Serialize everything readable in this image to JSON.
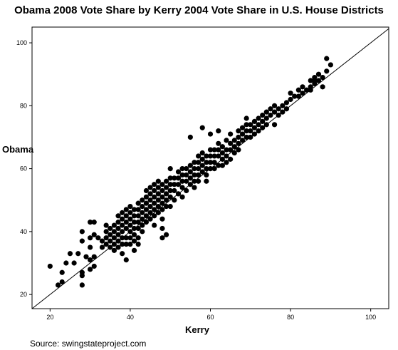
{
  "chart_data": {
    "type": "scatter",
    "title": "Obama 2008 Vote Share by Kerry 2004 Vote Share in U.S. House Districts",
    "xlabel": "Kerry",
    "ylabel": "Obama",
    "xlim": [
      15.5,
      104.5
    ],
    "ylim": [
      15.5,
      105
    ],
    "xticks": [
      "20",
      "40",
      "60",
      "80",
      "100"
    ],
    "yticks": [
      "20",
      "40",
      "60",
      "80",
      "100"
    ],
    "reference_line": "y = x",
    "grid": false,
    "legend": "none",
    "point_color": "#000000",
    "points": [
      [
        20,
        29
      ],
      [
        22,
        23
      ],
      [
        23,
        24
      ],
      [
        23,
        27
      ],
      [
        24,
        30
      ],
      [
        25,
        33
      ],
      [
        26,
        30
      ],
      [
        27,
        33
      ],
      [
        28,
        40
      ],
      [
        28,
        37
      ],
      [
        28,
        27
      ],
      [
        28,
        26
      ],
      [
        28,
        23
      ],
      [
        29,
        32
      ],
      [
        30,
        43
      ],
      [
        30,
        38
      ],
      [
        30,
        35
      ],
      [
        30,
        31
      ],
      [
        30,
        28
      ],
      [
        31,
        43
      ],
      [
        31,
        39
      ],
      [
        31,
        32
      ],
      [
        31,
        29
      ],
      [
        32,
        38
      ],
      [
        33,
        37
      ],
      [
        33,
        35
      ],
      [
        34,
        42
      ],
      [
        34,
        40
      ],
      [
        34,
        38
      ],
      [
        34,
        36
      ],
      [
        35,
        41
      ],
      [
        35,
        39
      ],
      [
        35,
        37
      ],
      [
        35,
        35
      ],
      [
        36,
        42
      ],
      [
        36,
        40
      ],
      [
        36,
        38
      ],
      [
        36,
        36
      ],
      [
        36,
        34
      ],
      [
        37,
        45
      ],
      [
        37,
        43
      ],
      [
        37,
        41
      ],
      [
        37,
        39
      ],
      [
        37,
        37
      ],
      [
        37,
        35
      ],
      [
        38,
        46
      ],
      [
        38,
        44
      ],
      [
        38,
        42
      ],
      [
        38,
        40
      ],
      [
        38,
        38
      ],
      [
        38,
        36
      ],
      [
        38,
        33
      ],
      [
        39,
        47
      ],
      [
        39,
        45
      ],
      [
        39,
        43
      ],
      [
        39,
        41
      ],
      [
        39,
        38
      ],
      [
        39,
        36
      ],
      [
        39,
        31
      ],
      [
        40,
        48
      ],
      [
        40,
        46
      ],
      [
        40,
        44
      ],
      [
        40,
        42
      ],
      [
        40,
        40
      ],
      [
        40,
        38
      ],
      [
        40,
        36
      ],
      [
        41,
        47
      ],
      [
        41,
        45
      ],
      [
        41,
        43
      ],
      [
        41,
        41
      ],
      [
        41,
        39
      ],
      [
        41,
        37
      ],
      [
        41,
        34
      ],
      [
        42,
        49
      ],
      [
        42,
        47
      ],
      [
        42,
        45
      ],
      [
        42,
        43
      ],
      [
        42,
        41
      ],
      [
        42,
        38
      ],
      [
        42,
        36
      ],
      [
        43,
        50
      ],
      [
        43,
        48
      ],
      [
        43,
        46
      ],
      [
        43,
        44
      ],
      [
        43,
        42
      ],
      [
        43,
        40
      ],
      [
        44,
        53
      ],
      [
        44,
        51
      ],
      [
        44,
        49
      ],
      [
        44,
        47
      ],
      [
        44,
        45
      ],
      [
        44,
        43
      ],
      [
        45,
        54
      ],
      [
        45,
        52
      ],
      [
        45,
        50
      ],
      [
        45,
        48
      ],
      [
        45,
        46
      ],
      [
        45,
        44
      ],
      [
        46,
        55
      ],
      [
        46,
        53
      ],
      [
        46,
        51
      ],
      [
        46,
        49
      ],
      [
        46,
        47
      ],
      [
        46,
        45
      ],
      [
        46,
        42
      ],
      [
        47,
        56
      ],
      [
        47,
        54
      ],
      [
        47,
        52
      ],
      [
        47,
        50
      ],
      [
        47,
        48
      ],
      [
        47,
        46
      ],
      [
        48,
        55
      ],
      [
        48,
        53
      ],
      [
        48,
        51
      ],
      [
        48,
        49
      ],
      [
        48,
        47
      ],
      [
        48,
        44
      ],
      [
        48,
        41
      ],
      [
        48,
        38
      ],
      [
        49,
        56
      ],
      [
        49,
        54
      ],
      [
        49,
        52
      ],
      [
        49,
        50
      ],
      [
        49,
        48
      ],
      [
        49,
        39
      ],
      [
        50,
        60
      ],
      [
        50,
        57
      ],
      [
        50,
        55
      ],
      [
        50,
        53
      ],
      [
        50,
        51
      ],
      [
        50,
        48
      ],
      [
        51,
        57
      ],
      [
        51,
        55
      ],
      [
        51,
        53
      ],
      [
        51,
        50
      ],
      [
        52,
        59
      ],
      [
        52,
        57
      ],
      [
        52,
        55
      ],
      [
        52,
        52
      ],
      [
        53,
        60
      ],
      [
        53,
        58
      ],
      [
        53,
        56
      ],
      [
        53,
        54
      ],
      [
        53,
        51
      ],
      [
        54,
        60
      ],
      [
        54,
        58
      ],
      [
        54,
        56
      ],
      [
        54,
        53
      ],
      [
        55,
        61
      ],
      [
        55,
        59
      ],
      [
        55,
        57
      ],
      [
        55,
        55
      ],
      [
        55,
        70
      ],
      [
        56,
        62
      ],
      [
        56,
        60
      ],
      [
        56,
        58
      ],
      [
        56,
        56
      ],
      [
        56,
        54
      ],
      [
        57,
        64
      ],
      [
        57,
        62
      ],
      [
        57,
        60
      ],
      [
        57,
        58
      ],
      [
        57,
        56
      ],
      [
        58,
        65
      ],
      [
        58,
        63
      ],
      [
        58,
        61
      ],
      [
        58,
        59
      ],
      [
        58,
        73
      ],
      [
        59,
        64
      ],
      [
        59,
        62
      ],
      [
        59,
        60
      ],
      [
        59,
        58
      ],
      [
        59,
        56
      ],
      [
        60,
        66
      ],
      [
        60,
        64
      ],
      [
        60,
        62
      ],
      [
        60,
        60
      ],
      [
        60,
        71
      ],
      [
        61,
        66
      ],
      [
        61,
        64
      ],
      [
        61,
        62
      ],
      [
        61,
        60
      ],
      [
        62,
        68
      ],
      [
        62,
        66
      ],
      [
        62,
        64
      ],
      [
        62,
        61
      ],
      [
        62,
        72
      ],
      [
        63,
        67
      ],
      [
        63,
        65
      ],
      [
        63,
        63
      ],
      [
        63,
        61
      ],
      [
        64,
        69
      ],
      [
        64,
        66
      ],
      [
        64,
        64
      ],
      [
        64,
        62
      ],
      [
        65,
        68
      ],
      [
        65,
        66
      ],
      [
        65,
        63
      ],
      [
        65,
        71
      ],
      [
        66,
        69
      ],
      [
        66,
        67
      ],
      [
        66,
        65
      ],
      [
        67,
        72
      ],
      [
        67,
        70
      ],
      [
        67,
        68
      ],
      [
        67,
        66
      ],
      [
        68,
        73
      ],
      [
        68,
        71
      ],
      [
        68,
        69
      ],
      [
        69,
        76
      ],
      [
        69,
        74
      ],
      [
        69,
        72
      ],
      [
        69,
        70
      ],
      [
        70,
        74
      ],
      [
        70,
        72
      ],
      [
        70,
        70
      ],
      [
        71,
        75
      ],
      [
        71,
        73
      ],
      [
        71,
        71
      ],
      [
        72,
        76
      ],
      [
        72,
        74
      ],
      [
        72,
        72
      ],
      [
        73,
        77
      ],
      [
        73,
        75
      ],
      [
        73,
        73
      ],
      [
        74,
        78
      ],
      [
        74,
        76
      ],
      [
        74,
        74
      ],
      [
        75,
        79
      ],
      [
        75,
        77
      ],
      [
        76,
        80
      ],
      [
        76,
        78
      ],
      [
        76,
        74
      ],
      [
        77,
        79
      ],
      [
        77,
        77
      ],
      [
        78,
        80
      ],
      [
        78,
        78
      ],
      [
        79,
        81
      ],
      [
        79,
        79
      ],
      [
        80,
        82
      ],
      [
        80,
        84
      ],
      [
        81,
        83
      ],
      [
        82,
        85
      ],
      [
        82,
        83
      ],
      [
        83,
        86
      ],
      [
        83,
        84
      ],
      [
        84,
        85
      ],
      [
        85,
        86
      ],
      [
        85,
        88
      ],
      [
        86,
        87
      ],
      [
        86,
        89
      ],
      [
        87,
        88
      ],
      [
        87,
        90
      ],
      [
        88,
        89
      ],
      [
        88,
        86
      ],
      [
        89,
        91
      ],
      [
        89,
        95
      ],
      [
        90,
        93
      ],
      [
        85,
        85
      ],
      [
        86,
        88
      ]
    ]
  }
}
